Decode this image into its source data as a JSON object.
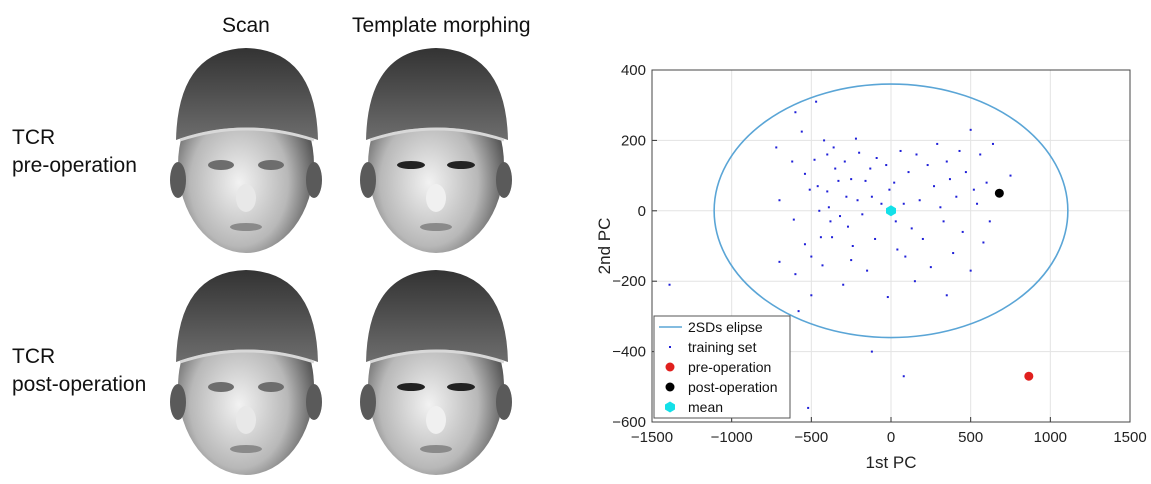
{
  "figure": {
    "col_scan": "Scan",
    "col_template": "Template morphing",
    "row1_line1": "TCR",
    "row1_line2": "pre-operation",
    "row2_line1": "TCR",
    "row2_line2": "post-operation"
  },
  "chart_data": {
    "type": "scatter",
    "title": "",
    "xlabel": "1st PC",
    "ylabel": "2nd PC",
    "xlim": [
      -1500,
      1500
    ],
    "ylim": [
      -600,
      400
    ],
    "xticks": [
      "-1500",
      "-1000",
      "-500",
      "0",
      "500",
      "1000",
      "1500"
    ],
    "yticks": [
      "-600",
      "-400",
      "-200",
      "0",
      "200",
      "400"
    ],
    "grid": true,
    "legend_position": "bottom-left",
    "ellipse": {
      "name": "2SDs elipse",
      "center": [
        0,
        0
      ],
      "rx": 1110,
      "ry": 360,
      "color": "#5aa5d6"
    },
    "series": [
      {
        "name": "training set",
        "color": "#1f1fd8",
        "points": [
          [
            -1390,
            -210
          ],
          [
            -720,
            180
          ],
          [
            -700,
            -145
          ],
          [
            -620,
            140
          ],
          [
            -600,
            280
          ],
          [
            -610,
            -25
          ],
          [
            -580,
            -285
          ],
          [
            -560,
            225
          ],
          [
            -540,
            105
          ],
          [
            -540,
            -95
          ],
          [
            -510,
            60
          ],
          [
            -500,
            -130
          ],
          [
            -500,
            -240
          ],
          [
            -480,
            145
          ],
          [
            -470,
            310
          ],
          [
            -460,
            70
          ],
          [
            -440,
            -75
          ],
          [
            -430,
            -155
          ],
          [
            -420,
            200
          ],
          [
            -400,
            55
          ],
          [
            -400,
            160
          ],
          [
            -390,
            10
          ],
          [
            -380,
            -30
          ],
          [
            -370,
            -75
          ],
          [
            -360,
            180
          ],
          [
            -350,
            120
          ],
          [
            -330,
            85
          ],
          [
            -320,
            -15
          ],
          [
            -300,
            -210
          ],
          [
            -290,
            140
          ],
          [
            -280,
            40
          ],
          [
            -270,
            -45
          ],
          [
            -250,
            90
          ],
          [
            -240,
            -100
          ],
          [
            -220,
            205
          ],
          [
            -210,
            30
          ],
          [
            -200,
            165
          ],
          [
            -180,
            -10
          ],
          [
            -160,
            85
          ],
          [
            -150,
            -170
          ],
          [
            -130,
            120
          ],
          [
            -120,
            40
          ],
          [
            -100,
            -80
          ],
          [
            -90,
            150
          ],
          [
            -60,
            20
          ],
          [
            -30,
            130
          ],
          [
            -20,
            -245
          ],
          [
            -10,
            60
          ],
          [
            20,
            80
          ],
          [
            30,
            -30
          ],
          [
            40,
            -110
          ],
          [
            60,
            170
          ],
          [
            80,
            20
          ],
          [
            90,
            -130
          ],
          [
            110,
            110
          ],
          [
            130,
            -50
          ],
          [
            160,
            160
          ],
          [
            180,
            30
          ],
          [
            200,
            -80
          ],
          [
            230,
            130
          ],
          [
            250,
            -160
          ],
          [
            270,
            70
          ],
          [
            290,
            190
          ],
          [
            310,
            10
          ],
          [
            330,
            -30
          ],
          [
            350,
            140
          ],
          [
            370,
            90
          ],
          [
            390,
            -120
          ],
          [
            410,
            40
          ],
          [
            430,
            170
          ],
          [
            450,
            -60
          ],
          [
            470,
            110
          ],
          [
            500,
            -170
          ],
          [
            520,
            60
          ],
          [
            540,
            20
          ],
          [
            560,
            160
          ],
          [
            580,
            -90
          ],
          [
            600,
            80
          ],
          [
            620,
            -30
          ],
          [
            640,
            190
          ],
          [
            -450,
            0
          ],
          [
            -250,
            -140
          ],
          [
            150,
            -200
          ],
          [
            350,
            -240
          ],
          [
            -600,
            -180
          ],
          [
            500,
            230
          ],
          [
            -700,
            30
          ],
          [
            -520,
            -560
          ],
          [
            -120,
            -400
          ],
          [
            80,
            -470
          ],
          [
            750,
            100
          ]
        ]
      },
      {
        "name": "pre-operation",
        "color": "#e0201e",
        "points": [
          [
            865,
            -470
          ]
        ]
      },
      {
        "name": "post-operation",
        "color": "#000000",
        "points": [
          [
            680,
            50
          ]
        ]
      },
      {
        "name": "mean",
        "color": "#14e0e8",
        "points": [
          [
            0,
            0
          ]
        ]
      }
    ]
  }
}
